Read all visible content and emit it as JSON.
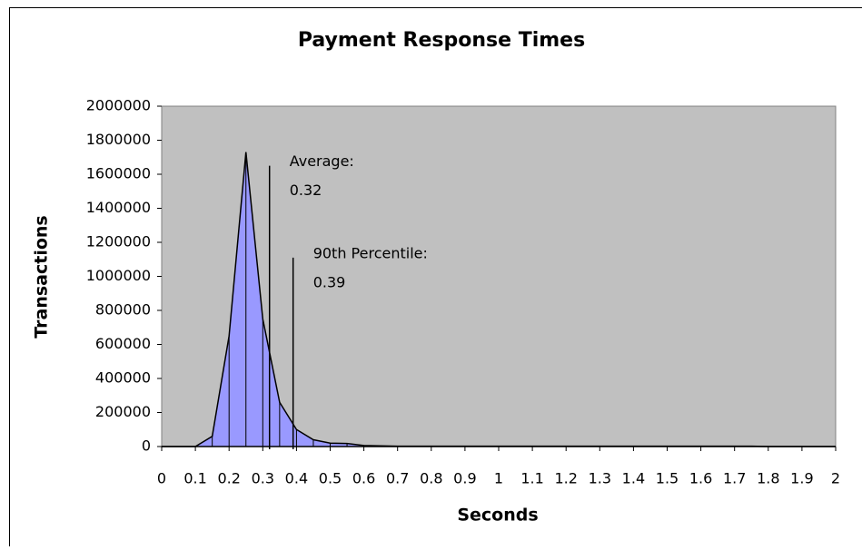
{
  "chart_data": {
    "type": "area",
    "title": "Payment Response Times",
    "x_label": "Seconds",
    "y_label": "Transactions",
    "x": [
      0,
      0.05,
      0.1,
      0.15,
      0.2,
      0.25,
      0.3,
      0.35,
      0.4,
      0.45,
      0.5,
      0.55,
      0.6,
      0.65,
      0.7,
      0.75,
      0.8,
      0.85,
      0.9,
      0.95,
      1,
      1.05,
      1.1,
      1.15,
      1.2,
      1.25,
      1.3,
      1.35,
      1.4,
      1.45,
      1.5,
      1.55,
      1.6,
      1.65,
      1.7,
      1.75,
      1.8,
      1.85,
      1.9,
      1.95,
      2
    ],
    "values": [
      0,
      0,
      0,
      60000,
      650000,
      1730000,
      750000,
      260000,
      100000,
      40000,
      20000,
      18000,
      6000,
      4000,
      2000,
      2000,
      2000,
      2000,
      2000,
      2000,
      2000,
      2000,
      2000,
      2000,
      2000,
      2000,
      2000,
      2000,
      2000,
      2000,
      2000,
      2000,
      2000,
      2000,
      2000,
      2000,
      0,
      0,
      0,
      0,
      0
    ],
    "color": "#9999ff",
    "xlim": [
      0,
      2
    ],
    "xticks": [
      0,
      0.1,
      0.2,
      0.3,
      0.4,
      0.5,
      0.6,
      0.7,
      0.8,
      0.9,
      1,
      1.1,
      1.2,
      1.3,
      1.4,
      1.5,
      1.6,
      1.7,
      1.8,
      1.9,
      2
    ],
    "ylim": [
      0,
      2000000
    ],
    "yticks": [
      0,
      200000,
      400000,
      600000,
      800000,
      1000000,
      1200000,
      1400000,
      1600000,
      1800000,
      2000000
    ],
    "plot_background": "#c0c0c0",
    "annotations": [
      {
        "label": "Average:",
        "value": 0.32,
        "height": 1650000
      },
      {
        "label": "90th Percentile:",
        "value": 0.39,
        "height": 1110000
      }
    ]
  }
}
